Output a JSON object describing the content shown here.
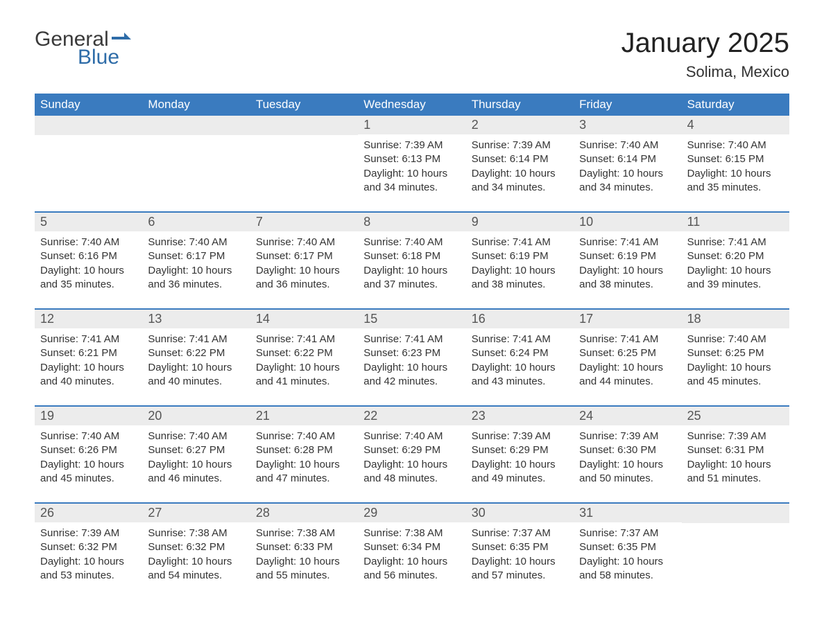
{
  "logo": {
    "word_general": "General",
    "word_blue": "Blue",
    "flag_color": "#2e6ca8"
  },
  "title": {
    "month_year": "January 2025",
    "location": "Solima, Mexico"
  },
  "colors": {
    "header_bg": "#3a7bbf",
    "header_text": "#ffffff",
    "daynum_bg": "#ececec",
    "daynum_text": "#555555",
    "body_text": "#333333",
    "row_divider": "#3a7bbf",
    "page_bg": "#ffffff"
  },
  "day_headers": [
    "Sunday",
    "Monday",
    "Tuesday",
    "Wednesday",
    "Thursday",
    "Friday",
    "Saturday"
  ],
  "weeks": [
    [
      null,
      null,
      null,
      {
        "n": "1",
        "sunrise": "Sunrise: 7:39 AM",
        "sunset": "Sunset: 6:13 PM",
        "dl1": "Daylight: 10 hours",
        "dl2": "and 34 minutes."
      },
      {
        "n": "2",
        "sunrise": "Sunrise: 7:39 AM",
        "sunset": "Sunset: 6:14 PM",
        "dl1": "Daylight: 10 hours",
        "dl2": "and 34 minutes."
      },
      {
        "n": "3",
        "sunrise": "Sunrise: 7:40 AM",
        "sunset": "Sunset: 6:14 PM",
        "dl1": "Daylight: 10 hours",
        "dl2": "and 34 minutes."
      },
      {
        "n": "4",
        "sunrise": "Sunrise: 7:40 AM",
        "sunset": "Sunset: 6:15 PM",
        "dl1": "Daylight: 10 hours",
        "dl2": "and 35 minutes."
      }
    ],
    [
      {
        "n": "5",
        "sunrise": "Sunrise: 7:40 AM",
        "sunset": "Sunset: 6:16 PM",
        "dl1": "Daylight: 10 hours",
        "dl2": "and 35 minutes."
      },
      {
        "n": "6",
        "sunrise": "Sunrise: 7:40 AM",
        "sunset": "Sunset: 6:17 PM",
        "dl1": "Daylight: 10 hours",
        "dl2": "and 36 minutes."
      },
      {
        "n": "7",
        "sunrise": "Sunrise: 7:40 AM",
        "sunset": "Sunset: 6:17 PM",
        "dl1": "Daylight: 10 hours",
        "dl2": "and 36 minutes."
      },
      {
        "n": "8",
        "sunrise": "Sunrise: 7:40 AM",
        "sunset": "Sunset: 6:18 PM",
        "dl1": "Daylight: 10 hours",
        "dl2": "and 37 minutes."
      },
      {
        "n": "9",
        "sunrise": "Sunrise: 7:41 AM",
        "sunset": "Sunset: 6:19 PM",
        "dl1": "Daylight: 10 hours",
        "dl2": "and 38 minutes."
      },
      {
        "n": "10",
        "sunrise": "Sunrise: 7:41 AM",
        "sunset": "Sunset: 6:19 PM",
        "dl1": "Daylight: 10 hours",
        "dl2": "and 38 minutes."
      },
      {
        "n": "11",
        "sunrise": "Sunrise: 7:41 AM",
        "sunset": "Sunset: 6:20 PM",
        "dl1": "Daylight: 10 hours",
        "dl2": "and 39 minutes."
      }
    ],
    [
      {
        "n": "12",
        "sunrise": "Sunrise: 7:41 AM",
        "sunset": "Sunset: 6:21 PM",
        "dl1": "Daylight: 10 hours",
        "dl2": "and 40 minutes."
      },
      {
        "n": "13",
        "sunrise": "Sunrise: 7:41 AM",
        "sunset": "Sunset: 6:22 PM",
        "dl1": "Daylight: 10 hours",
        "dl2": "and 40 minutes."
      },
      {
        "n": "14",
        "sunrise": "Sunrise: 7:41 AM",
        "sunset": "Sunset: 6:22 PM",
        "dl1": "Daylight: 10 hours",
        "dl2": "and 41 minutes."
      },
      {
        "n": "15",
        "sunrise": "Sunrise: 7:41 AM",
        "sunset": "Sunset: 6:23 PM",
        "dl1": "Daylight: 10 hours",
        "dl2": "and 42 minutes."
      },
      {
        "n": "16",
        "sunrise": "Sunrise: 7:41 AM",
        "sunset": "Sunset: 6:24 PM",
        "dl1": "Daylight: 10 hours",
        "dl2": "and 43 minutes."
      },
      {
        "n": "17",
        "sunrise": "Sunrise: 7:41 AM",
        "sunset": "Sunset: 6:25 PM",
        "dl1": "Daylight: 10 hours",
        "dl2": "and 44 minutes."
      },
      {
        "n": "18",
        "sunrise": "Sunrise: 7:40 AM",
        "sunset": "Sunset: 6:25 PM",
        "dl1": "Daylight: 10 hours",
        "dl2": "and 45 minutes."
      }
    ],
    [
      {
        "n": "19",
        "sunrise": "Sunrise: 7:40 AM",
        "sunset": "Sunset: 6:26 PM",
        "dl1": "Daylight: 10 hours",
        "dl2": "and 45 minutes."
      },
      {
        "n": "20",
        "sunrise": "Sunrise: 7:40 AM",
        "sunset": "Sunset: 6:27 PM",
        "dl1": "Daylight: 10 hours",
        "dl2": "and 46 minutes."
      },
      {
        "n": "21",
        "sunrise": "Sunrise: 7:40 AM",
        "sunset": "Sunset: 6:28 PM",
        "dl1": "Daylight: 10 hours",
        "dl2": "and 47 minutes."
      },
      {
        "n": "22",
        "sunrise": "Sunrise: 7:40 AM",
        "sunset": "Sunset: 6:29 PM",
        "dl1": "Daylight: 10 hours",
        "dl2": "and 48 minutes."
      },
      {
        "n": "23",
        "sunrise": "Sunrise: 7:39 AM",
        "sunset": "Sunset: 6:29 PM",
        "dl1": "Daylight: 10 hours",
        "dl2": "and 49 minutes."
      },
      {
        "n": "24",
        "sunrise": "Sunrise: 7:39 AM",
        "sunset": "Sunset: 6:30 PM",
        "dl1": "Daylight: 10 hours",
        "dl2": "and 50 minutes."
      },
      {
        "n": "25",
        "sunrise": "Sunrise: 7:39 AM",
        "sunset": "Sunset: 6:31 PM",
        "dl1": "Daylight: 10 hours",
        "dl2": "and 51 minutes."
      }
    ],
    [
      {
        "n": "26",
        "sunrise": "Sunrise: 7:39 AM",
        "sunset": "Sunset: 6:32 PM",
        "dl1": "Daylight: 10 hours",
        "dl2": "and 53 minutes."
      },
      {
        "n": "27",
        "sunrise": "Sunrise: 7:38 AM",
        "sunset": "Sunset: 6:32 PM",
        "dl1": "Daylight: 10 hours",
        "dl2": "and 54 minutes."
      },
      {
        "n": "28",
        "sunrise": "Sunrise: 7:38 AM",
        "sunset": "Sunset: 6:33 PM",
        "dl1": "Daylight: 10 hours",
        "dl2": "and 55 minutes."
      },
      {
        "n": "29",
        "sunrise": "Sunrise: 7:38 AM",
        "sunset": "Sunset: 6:34 PM",
        "dl1": "Daylight: 10 hours",
        "dl2": "and 56 minutes."
      },
      {
        "n": "30",
        "sunrise": "Sunrise: 7:37 AM",
        "sunset": "Sunset: 6:35 PM",
        "dl1": "Daylight: 10 hours",
        "dl2": "and 57 minutes."
      },
      {
        "n": "31",
        "sunrise": "Sunrise: 7:37 AM",
        "sunset": "Sunset: 6:35 PM",
        "dl1": "Daylight: 10 hours",
        "dl2": "and 58 minutes."
      },
      null
    ]
  ]
}
